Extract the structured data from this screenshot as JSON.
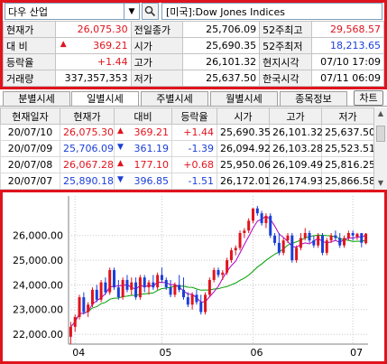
{
  "selector": {
    "value": "다우 산업"
  },
  "index_name": "[미국]:Dow Jones Indices",
  "quote": {
    "rows": [
      [
        {
          "label": "현재가",
          "value": "26,075.30",
          "color": "#e0141e"
        },
        {
          "label": "전일종가",
          "value": "25,706.09",
          "color": "#000000"
        },
        {
          "label": "52주최고",
          "value": "29,568.57",
          "color": "#e0141e"
        }
      ],
      [
        {
          "label": "대   비",
          "value": "369.21",
          "arrow": "▲",
          "color": "#e0141e"
        },
        {
          "label": "시가",
          "value": "25,690.35",
          "color": "#000000"
        },
        {
          "label": "52주최저",
          "value": "18,213.65",
          "color": "#1a3fd8"
        }
      ],
      [
        {
          "label": "등락율",
          "value": "+1.44",
          "color": "#e0141e"
        },
        {
          "label": "고가",
          "value": "26,101.32",
          "color": "#000000"
        },
        {
          "label": "현지시각",
          "value": "07/10 17:09",
          "color": "#000000"
        }
      ],
      [
        {
          "label": "거래량",
          "value": "337,357,353",
          "color": "#000000"
        },
        {
          "label": "저가",
          "value": "25,637.50",
          "color": "#000000"
        },
        {
          "label": "한국시각",
          "value": "07/11 06:09",
          "color": "#000000"
        }
      ]
    ]
  },
  "tabs": [
    {
      "label": "분별시세",
      "active": false
    },
    {
      "label": "일별시세",
      "active": true
    },
    {
      "label": "주별시세",
      "active": false
    },
    {
      "label": "월별시세",
      "active": false
    },
    {
      "label": "종목정보",
      "active": false
    }
  ],
  "chart_button": "차트",
  "daily": {
    "headers": [
      "현재일자",
      "현재가",
      "대비",
      "등락율",
      "시가",
      "고가",
      "저가"
    ],
    "rows": [
      {
        "date": "20/07/10",
        "close": "26,075.30",
        "arrow": "▲",
        "change": "369.21",
        "pct": "+1.44",
        "open": "25,690.35",
        "high": "26,101.32",
        "low": "25,637.50",
        "dir": "up"
      },
      {
        "date": "20/07/09",
        "close": "25,706.09",
        "arrow": "▼",
        "change": "361.19",
        "pct": "-1.39",
        "open": "26,094.92",
        "high": "26,103.28",
        "low": "25,523.51",
        "dir": "down"
      },
      {
        "date": "20/07/08",
        "close": "26,067.28",
        "arrow": "▲",
        "change": "177.10",
        "pct": "+0.68",
        "open": "25,950.06",
        "high": "26,109.49",
        "low": "25,816.25",
        "dir": "up"
      },
      {
        "date": "20/07/07",
        "close": "25,890.18",
        "arrow": "▼",
        "change": "396.85",
        "pct": "-1.51",
        "open": "26,172.01",
        "high": "26,174.93",
        "low": "25,866.58",
        "dir": "down"
      }
    ]
  },
  "colors": {
    "up": "#e0141e",
    "down": "#1a3fd8",
    "ma_short": "#b000c0",
    "ma_long": "#00a000",
    "frame": "#e0141e"
  },
  "chart_data": {
    "type": "candlestick",
    "ytick_labels": [
      "26,000.00",
      "25,000.00",
      "24,000.00",
      "23,000.00",
      "22,000.00"
    ],
    "yticks": [
      26000,
      25000,
      24000,
      23000,
      22000
    ],
    "ylim": [
      21600,
      27600
    ],
    "xtick_labels": [
      "04",
      "05",
      "06",
      "07"
    ],
    "xtick_index": [
      1,
      21,
      42,
      65
    ],
    "series": [
      {
        "name": "",
        "ohlc": [
          [
            21900,
            22500,
            21600,
            22300
          ],
          [
            22300,
            22800,
            22100,
            22700
          ],
          [
            22700,
            23600,
            22600,
            23500
          ],
          [
            23500,
            23700,
            22800,
            22900
          ],
          [
            22900,
            23300,
            22700,
            23200
          ],
          [
            23200,
            23900,
            23100,
            23800
          ],
          [
            23800,
            24000,
            23300,
            23400
          ],
          [
            23400,
            24200,
            23300,
            24100
          ],
          [
            24100,
            24300,
            23600,
            23700
          ],
          [
            23700,
            24700,
            23600,
            24600
          ],
          [
            24600,
            24700,
            23800,
            23900
          ],
          [
            23900,
            24200,
            23400,
            23500
          ],
          [
            23500,
            24300,
            23400,
            24200
          ],
          [
            24200,
            24400,
            23700,
            23800
          ],
          [
            23800,
            24300,
            23600,
            24100
          ],
          [
            24100,
            24300,
            23400,
            23500
          ],
          [
            23500,
            24400,
            23400,
            24300
          ],
          [
            24300,
            24400,
            23700,
            23900
          ],
          [
            23900,
            24200,
            23600,
            24100
          ],
          [
            24100,
            24400,
            23800,
            23900
          ],
          [
            23900,
            24500,
            23800,
            24400
          ],
          [
            24400,
            24700,
            24100,
            24200
          ],
          [
            24200,
            24300,
            23800,
            23900
          ],
          [
            23900,
            24200,
            23500,
            23600
          ],
          [
            23600,
            24100,
            23500,
            24000
          ],
          [
            24000,
            24400,
            23700,
            23800
          ],
          [
            23800,
            24300,
            23400,
            23500
          ],
          [
            23500,
            23700,
            23100,
            23200
          ],
          [
            23200,
            23700,
            23000,
            23600
          ],
          [
            23600,
            23800,
            23200,
            23300
          ],
          [
            23300,
            23600,
            22800,
            22900
          ],
          [
            22900,
            23700,
            22800,
            23600
          ],
          [
            23600,
            24300,
            23500,
            24200
          ],
          [
            24200,
            24700,
            24100,
            24600
          ],
          [
            24600,
            24700,
            24300,
            24400
          ],
          [
            24400,
            24600,
            24200,
            24500
          ],
          [
            24500,
            25100,
            24400,
            25000
          ],
          [
            25000,
            25500,
            24900,
            25400
          ],
          [
            25400,
            25600,
            25200,
            25500
          ],
          [
            25500,
            26200,
            25400,
            26100
          ],
          [
            26100,
            26300,
            25900,
            26200
          ],
          [
            26200,
            26700,
            26100,
            26600
          ],
          [
            26600,
            27100,
            26500,
            27100
          ],
          [
            27100,
            27200,
            26800,
            26900
          ],
          [
            26900,
            27000,
            26400,
            26500
          ],
          [
            26500,
            26900,
            26300,
            26800
          ],
          [
            26800,
            26900,
            25900,
            26000
          ],
          [
            26000,
            26100,
            25600,
            25700
          ],
          [
            25700,
            26100,
            25200,
            25300
          ],
          [
            25300,
            25900,
            25200,
            25800
          ],
          [
            25800,
            26100,
            25700,
            26000
          ],
          [
            26000,
            26100,
            24900,
            25000
          ],
          [
            25000,
            25600,
            24900,
            25500
          ],
          [
            25500,
            26100,
            25400,
            25900
          ],
          [
            25900,
            26300,
            25800,
            26100
          ],
          [
            26100,
            26200,
            25700,
            25800
          ],
          [
            25800,
            26000,
            25500,
            25600
          ],
          [
            25600,
            26100,
            25500,
            26000
          ],
          [
            26000,
            26100,
            25200,
            25300
          ],
          [
            25300,
            25900,
            25200,
            25800
          ],
          [
            25800,
            26100,
            25700,
            26000
          ],
          [
            26000,
            26200,
            25800,
            25900
          ],
          [
            25900,
            26100,
            25500,
            25600
          ],
          [
            25600,
            26000,
            25500,
            25900
          ],
          [
            25900,
            26200,
            25800,
            26100
          ],
          [
            26100,
            26200,
            25800,
            26000
          ],
          [
            25950,
            26110,
            25820,
            26067
          ],
          [
            26094,
            26103,
            25523,
            25706
          ],
          [
            25690,
            26101,
            25637,
            26075
          ]
        ]
      },
      {
        "name": "",
        "values": []
      },
      {
        "name": "",
        "values": []
      }
    ]
  }
}
